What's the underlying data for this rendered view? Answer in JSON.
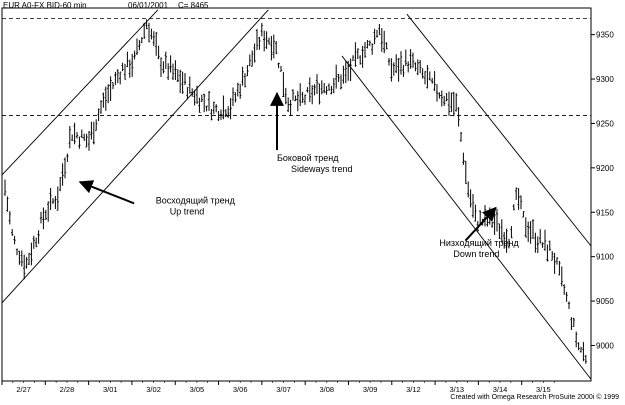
{
  "header": {
    "symbol": "EUR A0-FX BID-60 min",
    "date": "06/01/2001",
    "close": "C= 8465"
  },
  "credit": "Created with Omega Research ProSuite 2000i © 1999",
  "chart_data": {
    "type": "ohlc-bar",
    "y_axis_side": "right",
    "ylim": [
      8960,
      9380
    ],
    "y_ticks": [
      "9350",
      "9300",
      "9250",
      "9200",
      "9150",
      "9100",
      "9050",
      "9000"
    ],
    "x_ticks": [
      "2/27",
      "2/28",
      "3/01",
      "3/02",
      "3/05",
      "3/06",
      "3/07",
      "3/08",
      "3/09",
      "3/12",
      "3/13",
      "3/14",
      "3/15"
    ],
    "x_range": [
      0,
      13.6
    ],
    "h_levels": [
      9368,
      9259
    ],
    "price_path": [
      [
        0.0,
        9200
      ],
      [
        0.25,
        9120
      ],
      [
        0.55,
        9090
      ],
      [
        1.0,
        9150
      ],
      [
        1.3,
        9170
      ],
      [
        1.6,
        9240
      ],
      [
        2.0,
        9230
      ],
      [
        2.3,
        9270
      ],
      [
        2.75,
        9310
      ],
      [
        3.05,
        9320
      ],
      [
        3.35,
        9365
      ],
      [
        3.65,
        9320
      ],
      [
        4.0,
        9305
      ],
      [
        4.4,
        9285
      ],
      [
        4.9,
        9265
      ],
      [
        5.3,
        9270
      ],
      [
        5.7,
        9315
      ],
      [
        6.0,
        9350
      ],
      [
        6.3,
        9340
      ],
      [
        6.6,
        9275
      ],
      [
        6.9,
        9275
      ],
      [
        7.3,
        9290
      ],
      [
        7.65,
        9295
      ],
      [
        7.95,
        9305
      ],
      [
        8.3,
        9330
      ],
      [
        8.55,
        9340
      ],
      [
        8.7,
        9360
      ],
      [
        9.0,
        9310
      ],
      [
        9.4,
        9320
      ],
      [
        9.8,
        9300
      ],
      [
        10.2,
        9280
      ],
      [
        10.5,
        9270
      ],
      [
        10.75,
        9180
      ],
      [
        10.95,
        9140
      ],
      [
        11.25,
        9140
      ],
      [
        11.45,
        9135
      ],
      [
        11.7,
        9120
      ],
      [
        11.9,
        9170
      ],
      [
        12.05,
        9140
      ],
      [
        12.35,
        9120
      ],
      [
        12.7,
        9105
      ],
      [
        13.0,
        9060
      ],
      [
        13.3,
        9000
      ],
      [
        13.6,
        8980
      ]
    ],
    "trend_lines": [
      {
        "from": [
          0.0,
          9192
        ],
        "to": [
          3.6,
          9378
        ]
      },
      {
        "from": [
          0.0,
          9048
        ],
        "to": [
          6.15,
          9378
        ]
      },
      {
        "from": [
          7.85,
          9326
        ],
        "to": [
          13.6,
          8962
        ]
      },
      {
        "from": [
          9.35,
          9373
        ],
        "to": [
          13.6,
          9112
        ]
      }
    ],
    "annotations": [
      {
        "name": "up-trend",
        "lines": [
          "Восходящий тренд",
          "Up trend"
        ],
        "text_at": [
          3.55,
          9160
        ],
        "arrow_from": [
          3.05,
          9160
        ],
        "arrow_to": [
          1.8,
          9184
        ]
      },
      {
        "name": "sideways-trend",
        "lines": [
          "Боковой тренд",
          "Sideways trend"
        ],
        "text_at": [
          6.35,
          9208
        ],
        "arrow_from": [
          6.35,
          9220
        ],
        "arrow_to": [
          6.35,
          9284
        ]
      },
      {
        "name": "down-trend",
        "lines": [
          "Низходящий тренд",
          "Down trend"
        ],
        "text_at": [
          10.1,
          9112
        ],
        "arrow_from": [
          10.7,
          9118
        ],
        "arrow_to": [
          11.4,
          9155
        ]
      }
    ]
  }
}
